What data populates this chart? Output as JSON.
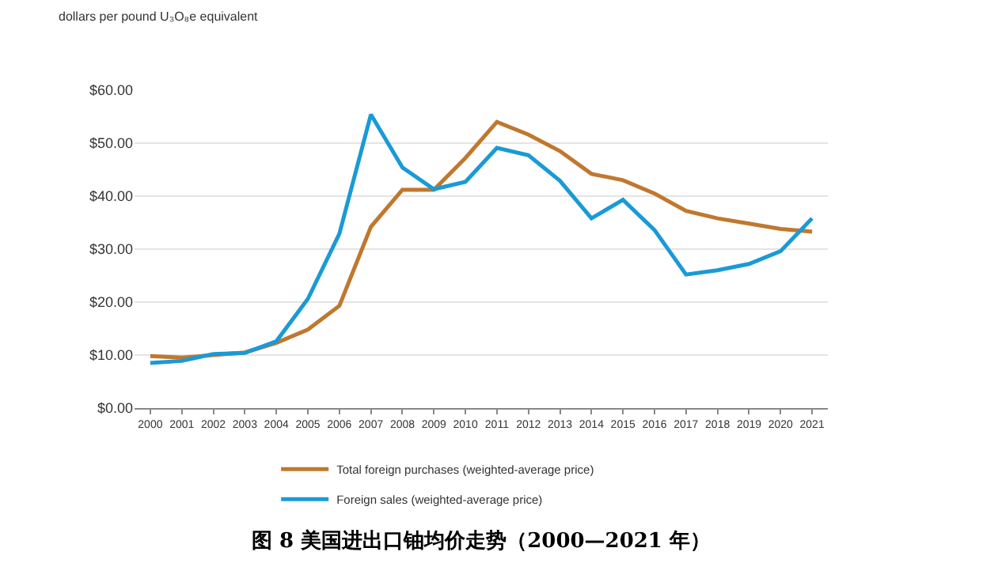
{
  "chart_data": {
    "type": "line",
    "ylabel": "dollars per pound U₃O₈e equivalent",
    "categories": [
      "2000",
      "2001",
      "2002",
      "2003",
      "2004",
      "2005",
      "2006",
      "2007",
      "2008",
      "2009",
      "2010",
      "2011",
      "2012",
      "2013",
      "2014",
      "2015",
      "2016",
      "2017",
      "2018",
      "2019",
      "2020",
      "2021"
    ],
    "series": [
      {
        "name": "Total foreign purchases (weighted-average price)",
        "color": "#c0782e",
        "values": [
          9.8,
          9.5,
          10.0,
          10.5,
          12.3,
          14.8,
          19.3,
          34.2,
          41.2,
          41.2,
          47.2,
          54.0,
          51.6,
          48.5,
          44.2,
          43.0,
          40.5,
          37.2,
          35.8,
          34.8,
          33.8,
          33.3
        ]
      },
      {
        "name": "Foreign sales (weighted-average price)",
        "color": "#1a9ad6",
        "values": [
          8.5,
          8.9,
          10.2,
          10.4,
          12.6,
          20.6,
          32.9,
          55.4,
          45.4,
          41.3,
          42.7,
          49.1,
          47.7,
          42.9,
          35.8,
          39.3,
          33.6,
          25.2,
          26.0,
          27.2,
          29.6,
          35.8
        ]
      }
    ],
    "ylim": [
      0,
      60
    ],
    "yticks": [
      {
        "value": 0,
        "label": "$0.00"
      },
      {
        "value": 10,
        "label": "$10.00"
      },
      {
        "value": 20,
        "label": "$20.00"
      },
      {
        "value": 30,
        "label": "$30.00"
      },
      {
        "value": 40,
        "label": "$40.00"
      },
      {
        "value": 50,
        "label": "$50.00"
      },
      {
        "value": 60,
        "label": "$60.00"
      }
    ],
    "grid": "y",
    "legend": "bottom",
    "marker": "none",
    "line_style": "solid",
    "annotations": [
      "图 8 美国进出口铀均价走势（2000—2021 年）"
    ]
  }
}
